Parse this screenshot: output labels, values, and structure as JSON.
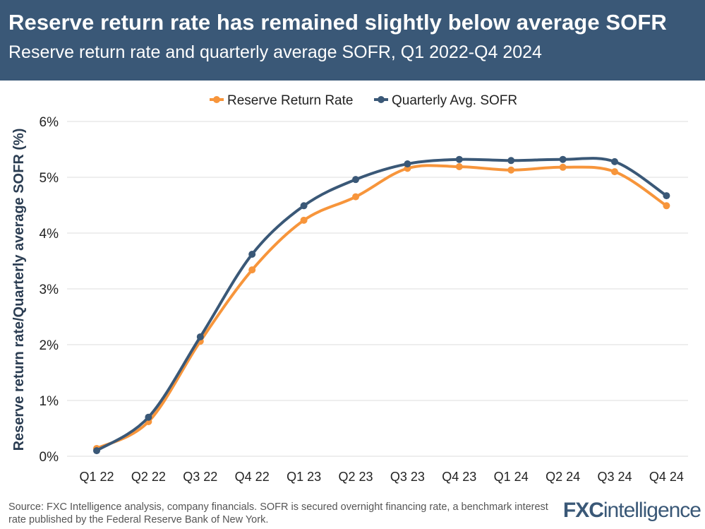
{
  "header": {
    "title": "Reserve return rate has remained slightly below average SOFR",
    "subtitle": "Reserve return rate and quarterly average SOFR, Q1 2022-Q4 2024"
  },
  "footer": {
    "source": "Source: FXC Intelligence analysis, company financials. SOFR is secured overnight financing rate, a benchmark interest rate published by the Federal Reserve Bank of New York.",
    "logo_fx": "FXC",
    "logo_rest": "intelligence"
  },
  "chart_data": {
    "type": "line",
    "title": "",
    "ylabel": "Reserve return rate/Quarterly average SOFR (%)",
    "xlabel": "",
    "ylim": [
      0,
      6
    ],
    "yticks": [
      "0%",
      "1%",
      "2%",
      "3%",
      "4%",
      "5%",
      "6%"
    ],
    "grid": true,
    "legend_position": "top",
    "categories": [
      "Q1 22",
      "Q2 22",
      "Q3 22",
      "Q4 22",
      "Q1 23",
      "Q2 23",
      "Q3 23",
      "Q4 23",
      "Q1 24",
      "Q2 24",
      "Q3 24",
      "Q4 24"
    ],
    "series": [
      {
        "name": "Reserve Return Rate",
        "color": "#f7953b",
        "values": [
          0.14,
          0.62,
          2.06,
          3.34,
          4.23,
          4.65,
          5.16,
          5.19,
          5.13,
          5.18,
          5.1,
          4.49
        ]
      },
      {
        "name": "Quarterly Avg. SOFR",
        "color": "#3a5877",
        "values": [
          0.1,
          0.7,
          2.14,
          3.62,
          4.49,
          4.96,
          5.24,
          5.32,
          5.3,
          5.32,
          5.28,
          4.67
        ]
      }
    ]
  }
}
